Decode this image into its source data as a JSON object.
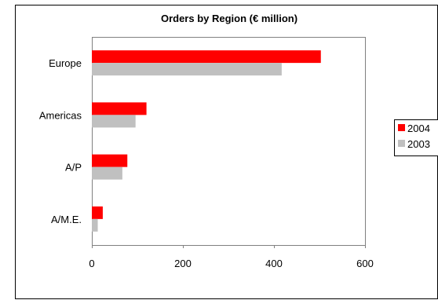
{
  "chart_data": {
    "type": "bar",
    "orientation": "horizontal",
    "title": "Orders by Region  (€ million)",
    "categories": [
      "Europe",
      "Americas",
      "A/P",
      "A/M.E."
    ],
    "series": [
      {
        "name": "2004",
        "color": "#ff0000",
        "values": [
          503,
          120,
          78,
          24
        ]
      },
      {
        "name": "2003",
        "color": "#c0c0c0",
        "values": [
          417,
          96,
          67,
          13
        ]
      }
    ],
    "xlim": [
      0,
      600
    ],
    "xticks": [
      0,
      200,
      400,
      600
    ],
    "xlabel": "",
    "ylabel": "",
    "grid": false,
    "legend_position": "right"
  }
}
